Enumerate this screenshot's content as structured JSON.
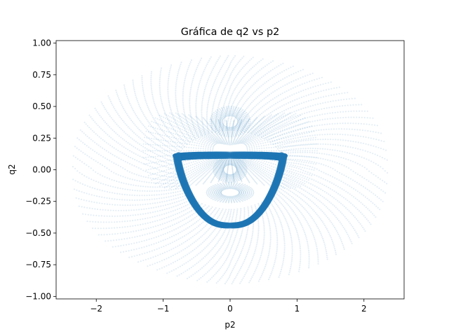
{
  "chart_data": {
    "type": "scatter",
    "title": "Gráfica de q2 vs p2",
    "xlabel": "p2",
    "ylabel": "q2",
    "xlim": [
      -2.6,
      2.6
    ],
    "ylim": [
      -1.02,
      1.02
    ],
    "xticks": [
      -2,
      -1,
      0,
      1,
      2
    ],
    "yticks": [
      -1.0,
      -0.75,
      -0.5,
      -0.25,
      0.0,
      0.25,
      0.5,
      0.75,
      1.0
    ],
    "xtick_labels": [
      "−2",
      "−1",
      "0",
      "1",
      "2"
    ],
    "ytick_labels": [
      "−1.00",
      "−0.75",
      "−0.50",
      "−0.25",
      "0.00",
      "0.25",
      "0.50",
      "0.75",
      "1.00"
    ],
    "grid": false,
    "marker_color": "#1f77b4",
    "series": [
      {
        "values_description_is_not_text": true,
        "x_extent": [
          -2.35,
          2.35
        ],
        "y_extent": [
          -0.9,
          0.9
        ],
        "dense_loop": {
          "x_extent": [
            -0.85,
            0.85
          ],
          "y_extent": [
            -0.47,
            0.16
          ]
        }
      }
    ]
  }
}
